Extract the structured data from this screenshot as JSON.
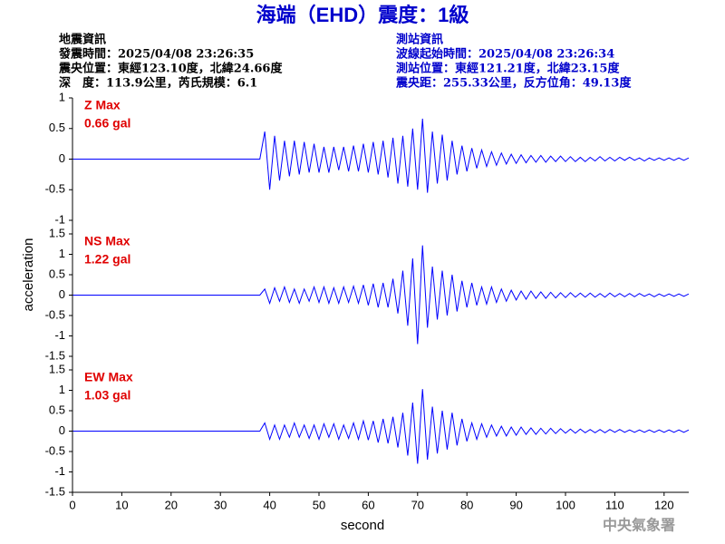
{
  "header": {
    "title": "海端（EHD）震度：1級",
    "left": [
      "地震資訊",
      "發震時間：2025/04/08 23:26:35",
      "震央位置：東經123.10度，北緯24.66度",
      "深　度：113.9公里，芮氏規模：6.1"
    ],
    "right": [
      "測站資訊",
      "波線起始時間：2025/04/08 23:26:34",
      "測站位置：東經121.21度，北緯23.15度",
      "震央距：255.33公里，反方位角：49.13度"
    ],
    "footer": "中央氣象署"
  },
  "chart_data": {
    "type": "line",
    "xlabel": "second",
    "ylabel": "acceleration",
    "color": "#0000ff",
    "xlim": [
      0,
      125
    ],
    "xticks": [
      0,
      10,
      20,
      30,
      40,
      50,
      60,
      70,
      80,
      90,
      100,
      110,
      120
    ],
    "x": [
      0,
      38,
      39,
      40,
      41,
      42,
      43,
      44,
      45,
      46,
      47,
      48,
      49,
      50,
      51,
      52,
      53,
      54,
      55,
      56,
      57,
      58,
      59,
      60,
      61,
      62,
      63,
      64,
      65,
      66,
      67,
      68,
      69,
      70,
      71,
      72,
      73,
      74,
      75,
      76,
      77,
      78,
      79,
      80,
      81,
      82,
      83,
      84,
      85,
      86,
      87,
      88,
      89,
      90,
      91,
      92,
      93,
      94,
      95,
      96,
      97,
      98,
      99,
      100,
      101,
      102,
      103,
      104,
      105,
      106,
      107,
      108,
      109,
      110,
      111,
      112,
      113,
      114,
      115,
      116,
      117,
      118,
      119,
      120,
      121,
      122,
      123,
      124,
      125
    ],
    "panels": [
      {
        "label": "Z Max",
        "max_label": "0.66 gal",
        "ylim": [
          -1,
          1
        ],
        "yticks": [
          -1,
          -0.5,
          0,
          0.5,
          1
        ],
        "values": [
          0,
          0,
          0.45,
          -0.5,
          0.38,
          -0.35,
          0.3,
          -0.28,
          0.3,
          -0.25,
          0.28,
          -0.22,
          0.25,
          -0.22,
          0.2,
          -0.22,
          0.2,
          -0.18,
          0.2,
          -0.2,
          0.22,
          -0.2,
          0.25,
          -0.22,
          0.28,
          -0.25,
          0.3,
          -0.3,
          0.35,
          -0.4,
          0.38,
          -0.45,
          0.5,
          -0.5,
          0.66,
          -0.55,
          0.45,
          -0.4,
          0.4,
          -0.35,
          0.3,
          -0.25,
          0.22,
          -0.2,
          0.18,
          -0.15,
          0.15,
          -0.12,
          0.12,
          -0.1,
          0.1,
          -0.08,
          0.08,
          -0.07,
          0.07,
          -0.06,
          0.06,
          -0.05,
          0.06,
          -0.05,
          0.05,
          -0.04,
          0.05,
          -0.04,
          0.04,
          -0.04,
          0.03,
          -0.04,
          0.03,
          -0.03,
          0.04,
          -0.03,
          0.03,
          -0.03,
          0.03,
          -0.02,
          0.03,
          -0.02,
          0.02,
          -0.03,
          0.02,
          -0.02,
          0.02,
          -0.02,
          0.02,
          -0.02,
          0.02,
          -0.02,
          0.02
        ]
      },
      {
        "label": "NS Max",
        "max_label": "1.22 gal",
        "ylim": [
          -1.5,
          1.5
        ],
        "yticks": [
          -1.5,
          -1,
          -0.5,
          0,
          0.5,
          1,
          1.5
        ],
        "values": [
          0,
          0,
          0.15,
          -0.2,
          0.18,
          -0.15,
          0.2,
          -0.18,
          0.15,
          -0.2,
          0.15,
          -0.15,
          0.2,
          -0.18,
          0.2,
          -0.2,
          0.18,
          -0.2,
          0.2,
          -0.18,
          0.22,
          -0.2,
          0.25,
          -0.25,
          0.28,
          -0.3,
          0.3,
          -0.3,
          0.4,
          -0.45,
          0.6,
          -0.75,
          0.9,
          -1.2,
          1.22,
          -0.8,
          0.7,
          -0.6,
          0.6,
          -0.5,
          0.5,
          -0.4,
          0.35,
          -0.3,
          0.3,
          -0.25,
          0.2,
          -0.22,
          0.2,
          -0.18,
          0.15,
          -0.15,
          0.12,
          -0.12,
          0.1,
          -0.1,
          0.1,
          -0.08,
          0.08,
          -0.08,
          0.07,
          -0.07,
          0.06,
          -0.06,
          0.06,
          -0.05,
          0.05,
          -0.05,
          0.05,
          -0.05,
          0.04,
          -0.05,
          0.05,
          -0.04,
          0.04,
          -0.04,
          0.04,
          -0.04,
          0.04,
          -0.03,
          0.03,
          -0.04,
          0.03,
          -0.03,
          0.03,
          -0.03,
          0.03,
          -0.03,
          0.03
        ]
      },
      {
        "label": "EW Max",
        "max_label": "1.03 gal",
        "ylim": [
          -1.5,
          1.5
        ],
        "yticks": [
          -1.5,
          -1,
          -0.5,
          0,
          0.5,
          1,
          1.5
        ],
        "values": [
          0,
          0,
          0.2,
          -0.2,
          0.15,
          -0.2,
          0.15,
          -0.15,
          0.2,
          -0.15,
          0.15,
          -0.18,
          0.15,
          -0.2,
          0.18,
          -0.15,
          0.18,
          -0.2,
          0.15,
          -0.18,
          0.2,
          -0.2,
          0.25,
          -0.22,
          0.25,
          -0.28,
          0.3,
          -0.3,
          0.35,
          -0.4,
          0.45,
          -0.6,
          0.7,
          -0.8,
          1.03,
          -0.7,
          0.6,
          -0.55,
          0.5,
          -0.45,
          0.45,
          -0.35,
          0.3,
          -0.25,
          0.2,
          -0.2,
          0.18,
          -0.15,
          0.15,
          -0.12,
          0.12,
          -0.12,
          0.1,
          -0.1,
          0.1,
          -0.08,
          0.08,
          -0.08,
          0.07,
          -0.07,
          0.07,
          -0.06,
          0.06,
          -0.05,
          0.05,
          -0.05,
          0.05,
          -0.04,
          0.04,
          -0.04,
          0.04,
          -0.04,
          0.04,
          -0.03,
          0.04,
          -0.03,
          0.03,
          -0.03,
          0.03,
          -0.03,
          0.03,
          -0.03,
          0.03,
          -0.03,
          0.03,
          -0.03,
          0.03,
          -0.03,
          0.03
        ]
      }
    ]
  }
}
